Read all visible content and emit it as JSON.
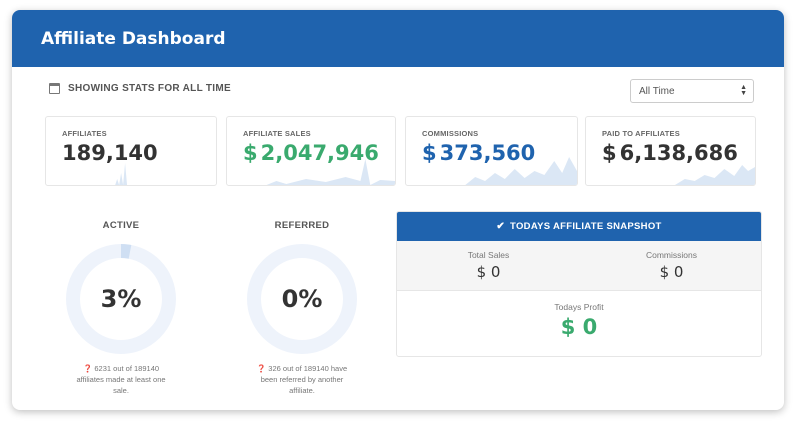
{
  "header": {
    "title": "Affiliate Dashboard"
  },
  "stats_bar": {
    "label": "SHOWING STATS FOR ALL TIME",
    "icon": "calendar-icon"
  },
  "range_select": {
    "value": "All Time"
  },
  "metrics": [
    {
      "label": "AFFILIATES",
      "currency": "",
      "value": "189,140",
      "color": "#333333"
    },
    {
      "label": "AFFILIATE SALES",
      "currency": "$",
      "value": "2,047,946",
      "color": "#3aaa6e"
    },
    {
      "label": "COMMISSIONS",
      "currency": "$",
      "value": "373,560",
      "color": "#1f63ae"
    },
    {
      "label": "PAID TO AFFILIATES",
      "currency": "$",
      "value": "6,138,686",
      "color": "#333333"
    }
  ],
  "gauges": [
    {
      "title": "ACTIVE",
      "percent_text": "3%",
      "fraction": 0.03,
      "note_icon": "?",
      "note": "6231 out of 189140 affiliates made at least one sale."
    },
    {
      "title": "REFERRED",
      "percent_text": "0%",
      "fraction": 0.0,
      "note_icon": "?",
      "note": "326 out of 189140 have been referred by another affiliate."
    }
  ],
  "snapshot": {
    "title": "TODAYS AFFILIATE SNAPSHOT",
    "total_sales_label": "Total Sales",
    "total_sales_value": "$ 0",
    "commissions_label": "Commissions",
    "commissions_value": "$ 0",
    "profit_label": "Todays Profit",
    "profit_value": "$ 0"
  },
  "colors": {
    "brand_blue": "#1f63ae",
    "profit_green": "#3aaa6e",
    "ring_track": "#eef3fb",
    "ring_fill": "#cfdff3",
    "sparkline": "#dbe7f5"
  }
}
